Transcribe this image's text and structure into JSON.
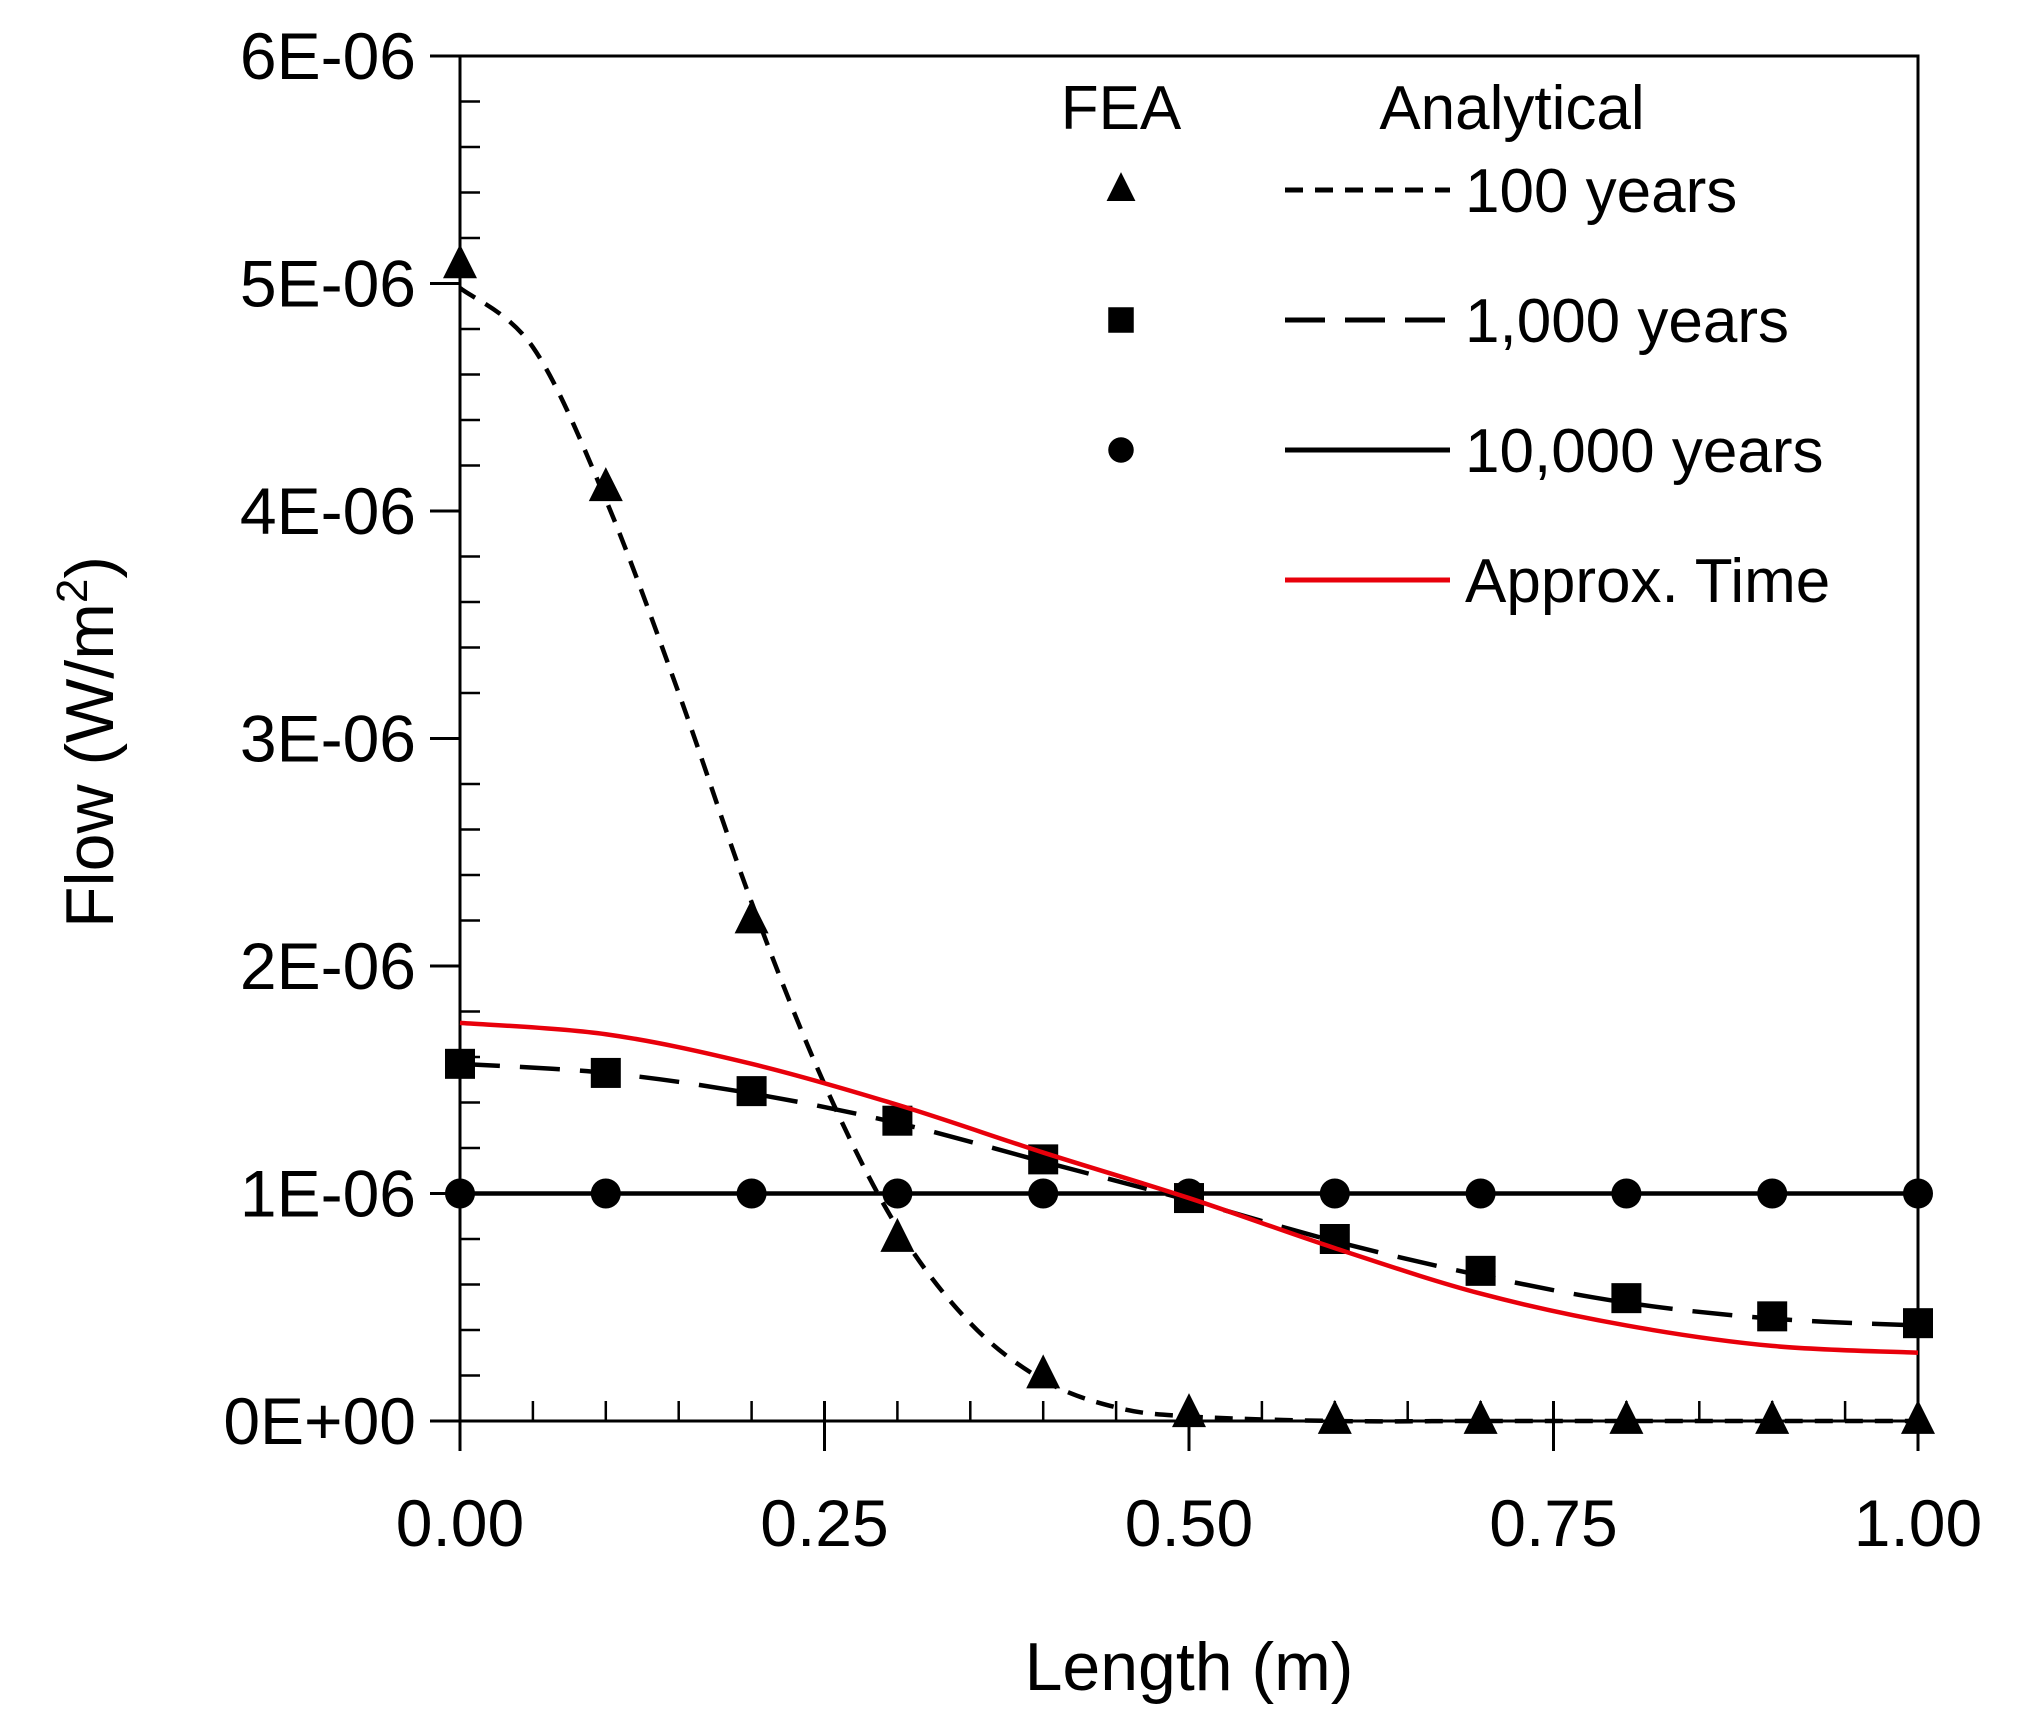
{
  "chart_data": {
    "type": "line",
    "xlabel": "Length (m)",
    "ylabel": "Flow (W/m",
    "ylabel_sup": "2",
    "ylabel_close": ")",
    "xlim": [
      0,
      1
    ],
    "ylim": [
      0,
      6e-06
    ],
    "x_ticks": [
      0,
      0.25,
      0.5,
      0.75,
      1
    ],
    "x_tick_labels": [
      "0.00",
      "0.25",
      "0.50",
      "0.75",
      "1.00"
    ],
    "y_ticks": [
      0,
      1e-06,
      2e-06,
      3e-06,
      4e-06,
      5e-06,
      6e-06
    ],
    "y_tick_labels": [
      "0E+00",
      "1E-06",
      "2E-06",
      "3E-06",
      "4E-06",
      "5E-06",
      "6E-06"
    ],
    "grid": false,
    "legend": {
      "position": "top-right",
      "col_fea": "FEA",
      "col_analytical": "Analytical"
    },
    "series": [
      {
        "name": "100 years",
        "style": "short-dash",
        "marker": "triangle",
        "color": "#000000",
        "fea_x": [
          0,
          0.1,
          0.2,
          0.3,
          0.4,
          0.5,
          0.6,
          0.7,
          0.8,
          0.9,
          1.0
        ],
        "fea_y": [
          5.08e-06,
          4.1e-06,
          2.2e-06,
          8e-07,
          2e-07,
          3e-08,
          0,
          0,
          0,
          0,
          0
        ],
        "analytical_x": [
          0,
          0.05,
          0.1,
          0.15,
          0.2,
          0.25,
          0.3,
          0.35,
          0.4,
          0.45,
          0.5,
          0.6,
          0.7,
          0.8,
          0.9,
          1.0
        ],
        "analytical_y": [
          4.98e-06,
          4.72e-06,
          4.05e-06,
          3.2e-06,
          2.28e-06,
          1.48e-06,
          8.5e-07,
          4.3e-07,
          1.8e-07,
          6e-08,
          2e-08,
          0,
          0,
          0,
          0,
          0
        ]
      },
      {
        "name": "1,000 years",
        "style": "long-dash",
        "marker": "square",
        "color": "#000000",
        "fea_x": [
          0,
          0.1,
          0.2,
          0.3,
          0.4,
          0.5,
          0.6,
          0.7,
          0.8,
          0.9,
          1.0
        ],
        "fea_y": [
          1.57e-06,
          1.53e-06,
          1.45e-06,
          1.32e-06,
          1.15e-06,
          9.8e-07,
          8e-07,
          6.6e-07,
          5.4e-07,
          4.6e-07,
          4.3e-07
        ],
        "analytical_x": [
          0,
          0.1,
          0.2,
          0.3,
          0.4,
          0.5,
          0.6,
          0.7,
          0.8,
          0.9,
          1.0
        ],
        "analytical_y": [
          1.57e-06,
          1.53e-06,
          1.44e-06,
          1.31e-06,
          1.14e-06,
          9.7e-07,
          7.9e-07,
          6.4e-07,
          5.2e-07,
          4.5e-07,
          4.2e-07
        ]
      },
      {
        "name": "10,000 years",
        "style": "solid",
        "marker": "circle",
        "color": "#000000",
        "fea_x": [
          0,
          0.1,
          0.2,
          0.3,
          0.4,
          0.5,
          0.6,
          0.7,
          0.8,
          0.9,
          1.0
        ],
        "fea_y": [
          1e-06,
          1e-06,
          1e-06,
          1e-06,
          1e-06,
          1e-06,
          1e-06,
          1e-06,
          1e-06,
          1e-06,
          1e-06
        ],
        "analytical_x": [
          0,
          1.0
        ],
        "analytical_y": [
          1e-06,
          1e-06
        ]
      },
      {
        "name": "Approx. Time",
        "style": "solid",
        "marker": "none",
        "color": "#e8000b",
        "analytical_x": [
          0,
          0.1,
          0.2,
          0.3,
          0.4,
          0.5,
          0.6,
          0.7,
          0.8,
          0.9,
          1.0
        ],
        "analytical_y": [
          1.75e-06,
          1.7e-06,
          1.57e-06,
          1.39e-06,
          1.18e-06,
          9.8e-07,
          7.6e-07,
          5.6e-07,
          4.2e-07,
          3.3e-07,
          3e-07
        ]
      }
    ]
  }
}
